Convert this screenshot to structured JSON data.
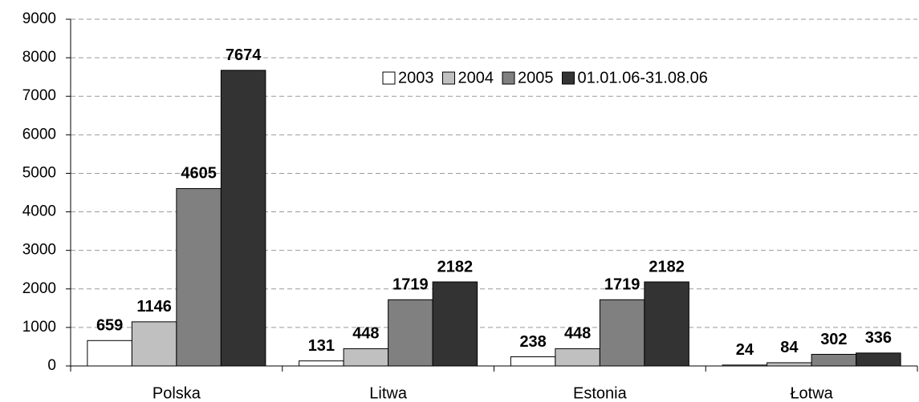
{
  "chart_data": {
    "type": "bar",
    "categories": [
      "Polska",
      "Litwa",
      "Estonia",
      "Łotwa"
    ],
    "series": [
      {
        "name": "2003",
        "color": "#ffffff",
        "values": [
          659,
          131,
          238,
          24
        ]
      },
      {
        "name": "2004",
        "color": "#c0c0c0",
        "values": [
          1146,
          448,
          448,
          84
        ]
      },
      {
        "name": "2005",
        "color": "#808080",
        "values": [
          4605,
          1719,
          1719,
          302
        ]
      },
      {
        "name": "01.01.06-31.08.06",
        "color": "#333333",
        "values": [
          7674,
          2182,
          2182,
          336
        ]
      }
    ],
    "ylim": [
      0,
      9000
    ],
    "yticks": [
      0,
      1000,
      2000,
      3000,
      4000,
      5000,
      6000,
      7000,
      8000,
      9000
    ],
    "grid": true
  }
}
